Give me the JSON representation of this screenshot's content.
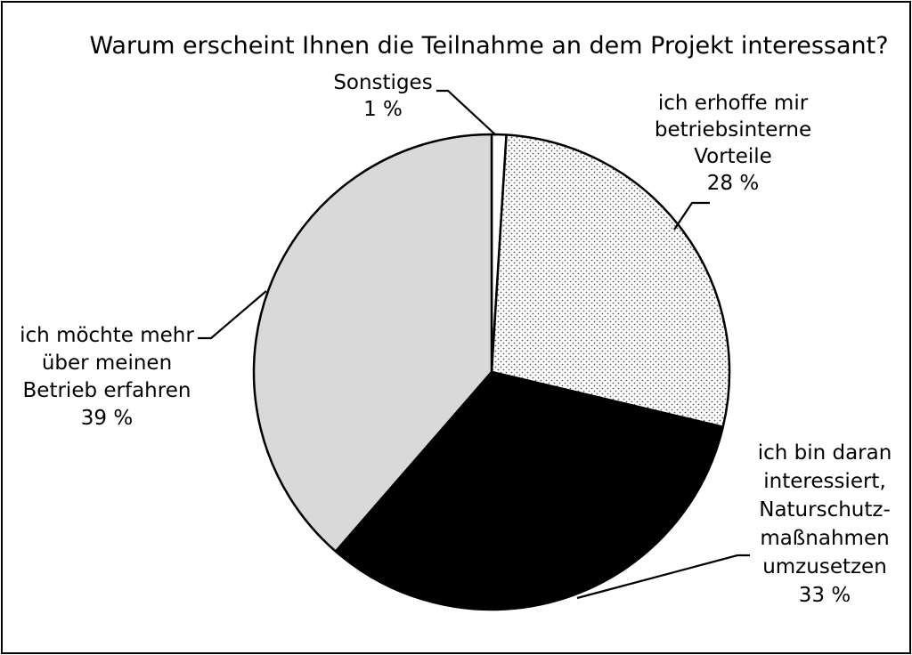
{
  "chart_data": {
    "type": "pie",
    "title": "Warum erscheint Ihnen die Teilnahme an dem Projekt interessant?",
    "start_angle_deg": 0,
    "direction": "clockwise",
    "slices": [
      {
        "key": "sonstiges",
        "label_lines": [
          "Sonstiges"
        ],
        "value": 1,
        "value_label": "1 %",
        "fill": "#ffffff"
      },
      {
        "key": "vorteile",
        "label_lines": [
          "ich erhoffe mir",
          "betriebsinterne",
          "Vorteile"
        ],
        "value": 28,
        "value_label": "28 %",
        "fill": "dotted"
      },
      {
        "key": "naturschutz",
        "label_lines": [
          "ich bin daran",
          "interessiert,",
          "Naturschutz-",
          "maßnahmen",
          "umzusetzen"
        ],
        "value": 33,
        "value_label": "33 %",
        "fill": "#000000"
      },
      {
        "key": "betrieb",
        "label_lines": [
          "ich möchte mehr",
          "über meinen",
          "Betrieb erfahren"
        ],
        "value": 39,
        "value_label": "39 %",
        "fill": "#d9d9d9"
      }
    ]
  }
}
